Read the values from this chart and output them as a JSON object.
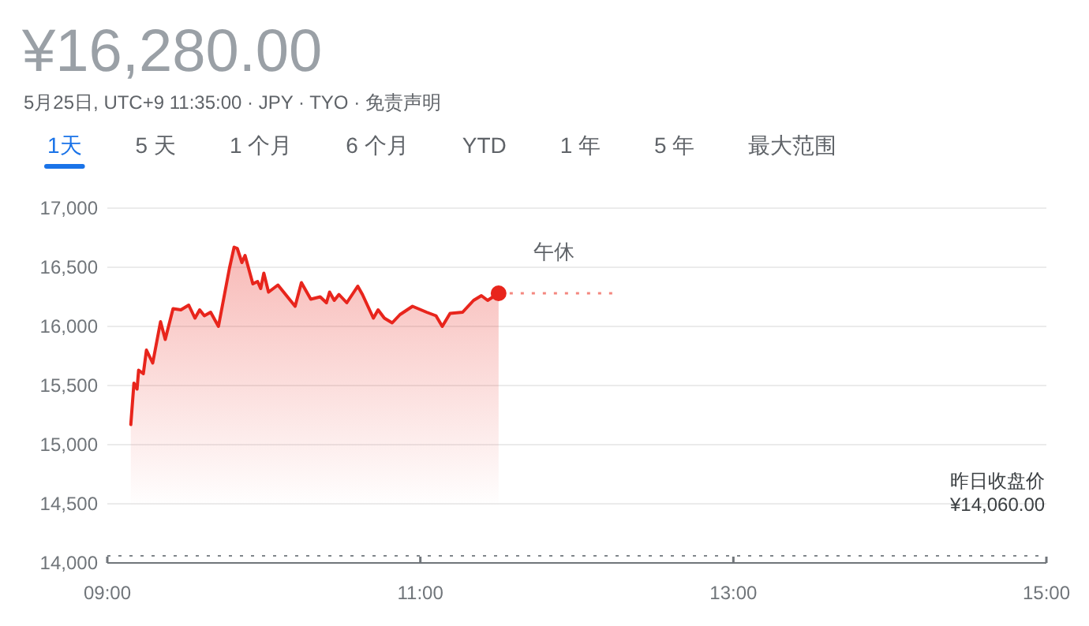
{
  "chart_data": {
    "type": "area",
    "title": "¥16,280.00",
    "subtitle": "5月25日, UTC+9 11:35:00 · JPY · TYO · 免责声明",
    "annotations": [
      "1天",
      "5 天",
      "1 个月",
      "6 个月",
      "YTD",
      "1 年",
      "5 年",
      "最大范围",
      "午休"
    ],
    "xlim": [
      9,
      15
    ],
    "xticks": [
      {
        "value": 9,
        "label": "09:00"
      },
      {
        "value": 11,
        "label": "11:00"
      },
      {
        "value": 13,
        "label": "13:00"
      },
      {
        "value": 15,
        "label": "15:00"
      }
    ],
    "ylim": [
      14000,
      17000
    ],
    "yticks": [
      {
        "value": 14000,
        "label": "14,000"
      },
      {
        "value": 14500,
        "label": "14,500"
      },
      {
        "value": 15000,
        "label": "15,000"
      },
      {
        "value": 15500,
        "label": "15,500"
      },
      {
        "value": 16000,
        "label": "16,000"
      },
      {
        "value": 16500,
        "label": "16,500"
      },
      {
        "value": 17000,
        "label": "17,000"
      }
    ],
    "grid": "y",
    "ref_lines": [
      {
        "axis": "y",
        "value": 14060,
        "label": "昨日收盘价 ¥14,060.00",
        "color": "#80868b",
        "line_style": "dotted"
      }
    ],
    "series": [
      {
        "color": "#e8251c",
        "x": [
          9.15,
          9.17,
          9.19,
          9.2,
          9.23,
          9.25,
          9.29,
          9.34,
          9.37,
          9.42,
          9.47,
          9.52,
          9.56,
          9.59,
          9.62,
          9.66,
          9.71,
          9.78,
          9.81,
          9.83,
          9.86,
          9.88,
          9.93,
          9.96,
          9.98,
          10.0,
          10.03,
          10.09,
          10.2,
          10.24,
          10.3,
          10.36,
          10.4,
          10.42,
          10.45,
          10.48,
          10.53,
          10.6,
          10.63,
          10.7,
          10.73,
          10.77,
          10.82,
          10.87,
          10.95,
          11.04,
          11.1,
          11.14,
          11.19,
          11.27,
          11.34,
          11.39,
          11.43,
          11.5
        ],
        "values": [
          15170,
          15520,
          15470,
          15630,
          15600,
          15800,
          15690,
          16040,
          15890,
          16150,
          16140,
          16180,
          16070,
          16140,
          16090,
          16120,
          16000,
          16490,
          16670,
          16660,
          16540,
          16600,
          16360,
          16380,
          16320,
          16450,
          16290,
          16350,
          16170,
          16370,
          16230,
          16250,
          16200,
          16290,
          16220,
          16270,
          16200,
          16340,
          16270,
          16070,
          16140,
          16070,
          16030,
          16100,
          16170,
          16120,
          16090,
          16000,
          16110,
          16120,
          16220,
          16260,
          16220,
          16280
        ]
      },
      {
        "type": "line",
        "line_style": "dotted",
        "color": "#f4877f",
        "x": [
          11.5,
          12.25
        ],
        "values": [
          16280,
          16280
        ]
      },
      {
        "type": "scatter",
        "marker": "circle",
        "color": "#e8251c",
        "x": [
          11.5
        ],
        "values": [
          16280
        ]
      }
    ]
  }
}
